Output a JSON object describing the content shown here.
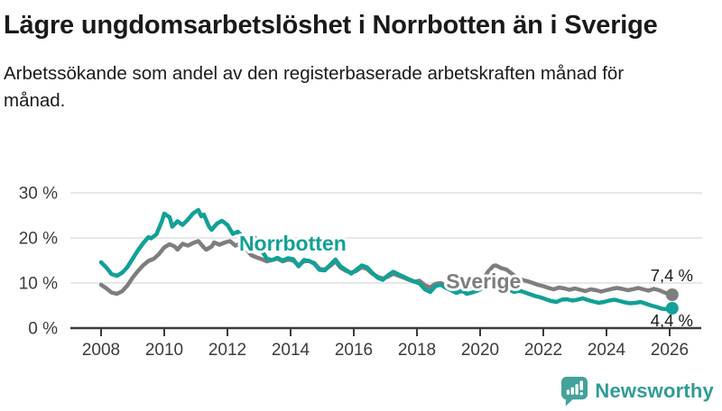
{
  "header": {
    "title": "Lägre ungdomsarbetslöshet i Norrbotten än i Sverige",
    "subtitle": "Arbetssökande som andel av den registerbaserade arbetskraften månad för månad."
  },
  "chart_data": {
    "type": "line",
    "title": "Lägre ungdomsarbetslöshet i Norrbotten än i Sverige",
    "xlabel": "",
    "ylabel": "Arbetssökande som andel av den registerbaserade arbetskraften, %",
    "x_unit": "year, monthly values",
    "xlim": [
      2007.0,
      2027.0
    ],
    "ylim": [
      0,
      32
    ],
    "grid": "horizontal",
    "legend_position": "inline-labels",
    "xticks": [
      2008,
      2010,
      2012,
      2014,
      2016,
      2018,
      2020,
      2022,
      2024,
      2026
    ],
    "yticks": [
      {
        "value": 0,
        "label": "0 %"
      },
      {
        "value": 10,
        "label": "10 %"
      },
      {
        "value": 20,
        "label": "20 %"
      },
      {
        "value": 30,
        "label": "30 %"
      }
    ],
    "series": [
      {
        "name": "Sverige",
        "color": "#7e7e7e",
        "label_pos": [
          2018.92,
          8.8
        ],
        "end_label": "7,4 %",
        "end_value": 7.4,
        "end_label_dy": -15,
        "points": [
          [
            2008.0,
            9.6
          ],
          [
            2008.17,
            8.8
          ],
          [
            2008.33,
            7.9
          ],
          [
            2008.5,
            7.6
          ],
          [
            2008.67,
            8.2
          ],
          [
            2008.83,
            9.4
          ],
          [
            2009.0,
            11.2
          ],
          [
            2009.17,
            12.7
          ],
          [
            2009.33,
            13.9
          ],
          [
            2009.5,
            14.9
          ],
          [
            2009.67,
            15.4
          ],
          [
            2009.83,
            16.4
          ],
          [
            2010.0,
            17.9
          ],
          [
            2010.17,
            18.6
          ],
          [
            2010.33,
            18.1
          ],
          [
            2010.42,
            17.4
          ],
          [
            2010.58,
            18.7
          ],
          [
            2010.75,
            18.3
          ],
          [
            2010.92,
            18.9
          ],
          [
            2011.08,
            19.3
          ],
          [
            2011.25,
            17.9
          ],
          [
            2011.33,
            17.4
          ],
          [
            2011.5,
            18.1
          ],
          [
            2011.58,
            19.0
          ],
          [
            2011.75,
            18.5
          ],
          [
            2011.92,
            19.0
          ],
          [
            2012.08,
            19.3
          ],
          [
            2012.25,
            18.3
          ],
          [
            2012.42,
            18.8
          ],
          [
            2012.58,
            17.7
          ],
          [
            2012.75,
            16.2
          ],
          [
            2012.92,
            15.7
          ],
          [
            2013.08,
            15.3
          ],
          [
            2013.25,
            14.8
          ],
          [
            2013.42,
            15.1
          ],
          [
            2013.58,
            15.4
          ],
          [
            2013.75,
            14.8
          ],
          [
            2013.92,
            15.2
          ],
          [
            2014.08,
            15.0
          ],
          [
            2014.25,
            13.9
          ],
          [
            2014.42,
            14.8
          ],
          [
            2014.58,
            14.9
          ],
          [
            2014.75,
            14.4
          ],
          [
            2014.92,
            13.1
          ],
          [
            2015.08,
            13.0
          ],
          [
            2015.25,
            13.8
          ],
          [
            2015.42,
            14.8
          ],
          [
            2015.58,
            13.4
          ],
          [
            2015.75,
            12.7
          ],
          [
            2015.92,
            12.3
          ],
          [
            2016.08,
            12.7
          ],
          [
            2016.25,
            13.5
          ],
          [
            2016.42,
            13.1
          ],
          [
            2016.58,
            12.1
          ],
          [
            2016.75,
            11.4
          ],
          [
            2016.92,
            11.0
          ],
          [
            2017.08,
            11.4
          ],
          [
            2017.25,
            12.1
          ],
          [
            2017.42,
            11.6
          ],
          [
            2017.58,
            11.2
          ],
          [
            2017.75,
            10.7
          ],
          [
            2017.92,
            10.3
          ],
          [
            2018.08,
            10.5
          ],
          [
            2018.25,
            9.5
          ],
          [
            2018.42,
            9.0
          ],
          [
            2018.58,
            9.8
          ],
          [
            2018.75,
            10.0
          ],
          [
            2018.92,
            9.4
          ],
          [
            2019.08,
            9.2
          ],
          [
            2019.25,
            9.6
          ],
          [
            2019.42,
            9.3
          ],
          [
            2019.58,
            9.0
          ],
          [
            2019.75,
            9.4
          ],
          [
            2019.92,
            9.9
          ],
          [
            2020.08,
            10.7
          ],
          [
            2020.25,
            12.5
          ],
          [
            2020.42,
            13.8
          ],
          [
            2020.5,
            13.9
          ],
          [
            2020.67,
            13.3
          ],
          [
            2020.83,
            13.0
          ],
          [
            2021.0,
            12.1
          ],
          [
            2021.17,
            11.2
          ],
          [
            2021.33,
            10.7
          ],
          [
            2021.5,
            10.4
          ],
          [
            2021.67,
            10.0
          ],
          [
            2021.83,
            9.6
          ],
          [
            2022.0,
            9.3
          ],
          [
            2022.17,
            8.9
          ],
          [
            2022.33,
            8.6
          ],
          [
            2022.5,
            9.0
          ],
          [
            2022.67,
            8.8
          ],
          [
            2022.83,
            8.5
          ],
          [
            2023.0,
            8.8
          ],
          [
            2023.17,
            8.5
          ],
          [
            2023.33,
            8.2
          ],
          [
            2023.5,
            8.6
          ],
          [
            2023.67,
            8.4
          ],
          [
            2023.83,
            8.1
          ],
          [
            2024.0,
            8.4
          ],
          [
            2024.17,
            8.7
          ],
          [
            2024.33,
            8.9
          ],
          [
            2024.5,
            8.7
          ],
          [
            2024.67,
            8.4
          ],
          [
            2024.83,
            8.6
          ],
          [
            2025.0,
            8.9
          ],
          [
            2025.17,
            8.6
          ],
          [
            2025.33,
            8.3
          ],
          [
            2025.5,
            8.7
          ],
          [
            2025.67,
            8.4
          ],
          [
            2025.83,
            7.9
          ],
          [
            2026.08,
            7.4
          ]
        ]
      },
      {
        "name": "Norrbotten",
        "color": "#12a097",
        "label_pos": [
          2012.37,
          17.2
        ],
        "end_label": "4,4 %",
        "end_value": 4.4,
        "end_label_dy": 20,
        "points": [
          [
            2008.0,
            14.6
          ],
          [
            2008.17,
            13.4
          ],
          [
            2008.33,
            12.0
          ],
          [
            2008.5,
            11.6
          ],
          [
            2008.67,
            12.3
          ],
          [
            2008.83,
            13.5
          ],
          [
            2009.0,
            15.4
          ],
          [
            2009.17,
            17.3
          ],
          [
            2009.33,
            18.8
          ],
          [
            2009.5,
            20.2
          ],
          [
            2009.58,
            19.9
          ],
          [
            2009.75,
            20.8
          ],
          [
            2009.92,
            23.6
          ],
          [
            2010.0,
            25.4
          ],
          [
            2010.17,
            24.6
          ],
          [
            2010.25,
            22.5
          ],
          [
            2010.42,
            23.7
          ],
          [
            2010.58,
            22.9
          ],
          [
            2010.75,
            24.1
          ],
          [
            2010.92,
            25.5
          ],
          [
            2011.08,
            26.2
          ],
          [
            2011.17,
            24.8
          ],
          [
            2011.25,
            25.2
          ],
          [
            2011.42,
            22.5
          ],
          [
            2011.5,
            21.8
          ],
          [
            2011.67,
            23.2
          ],
          [
            2011.83,
            23.8
          ],
          [
            2012.0,
            22.9
          ],
          [
            2012.17,
            20.9
          ],
          [
            2012.33,
            21.4
          ],
          [
            2012.5,
            20.1
          ],
          [
            2012.67,
            19.3
          ],
          [
            2012.83,
            20.3
          ],
          [
            2012.92,
            19.7
          ],
          [
            2013.08,
            17.2
          ],
          [
            2013.25,
            15.4
          ],
          [
            2013.42,
            15.1
          ],
          [
            2013.58,
            15.6
          ],
          [
            2013.75,
            15.0
          ],
          [
            2013.92,
            15.5
          ],
          [
            2014.08,
            15.3
          ],
          [
            2014.25,
            13.7
          ],
          [
            2014.42,
            15.1
          ],
          [
            2014.58,
            14.9
          ],
          [
            2014.75,
            14.3
          ],
          [
            2014.92,
            12.9
          ],
          [
            2015.08,
            12.8
          ],
          [
            2015.25,
            14.0
          ],
          [
            2015.42,
            15.2
          ],
          [
            2015.58,
            13.7
          ],
          [
            2015.75,
            12.9
          ],
          [
            2015.92,
            12.1
          ],
          [
            2016.08,
            12.9
          ],
          [
            2016.25,
            13.9
          ],
          [
            2016.42,
            13.5
          ],
          [
            2016.58,
            12.3
          ],
          [
            2016.75,
            11.2
          ],
          [
            2016.92,
            10.7
          ],
          [
            2017.08,
            11.7
          ],
          [
            2017.25,
            12.5
          ],
          [
            2017.42,
            11.9
          ],
          [
            2017.58,
            11.4
          ],
          [
            2017.75,
            10.8
          ],
          [
            2017.92,
            10.3
          ],
          [
            2018.08,
            9.9
          ],
          [
            2018.25,
            8.6
          ],
          [
            2018.42,
            8.0
          ],
          [
            2018.58,
            9.3
          ],
          [
            2018.75,
            9.6
          ],
          [
            2018.92,
            8.9
          ],
          [
            2019.08,
            8.4
          ],
          [
            2019.25,
            7.8
          ],
          [
            2019.42,
            8.3
          ],
          [
            2019.58,
            7.6
          ],
          [
            2019.75,
            7.9
          ],
          [
            2019.92,
            8.3
          ],
          [
            2020.08,
            8.9
          ],
          [
            2020.25,
            9.7
          ],
          [
            2020.42,
            10.4
          ],
          [
            2020.58,
            10.0
          ],
          [
            2020.75,
            9.2
          ],
          [
            2020.92,
            8.5
          ],
          [
            2021.08,
            8.0
          ],
          [
            2021.25,
            8.3
          ],
          [
            2021.42,
            7.9
          ],
          [
            2021.58,
            7.5
          ],
          [
            2021.75,
            7.1
          ],
          [
            2021.92,
            6.8
          ],
          [
            2022.08,
            6.4
          ],
          [
            2022.25,
            6.0
          ],
          [
            2022.42,
            5.8
          ],
          [
            2022.58,
            6.3
          ],
          [
            2022.75,
            6.4
          ],
          [
            2022.92,
            6.1
          ],
          [
            2023.08,
            6.3
          ],
          [
            2023.25,
            6.6
          ],
          [
            2023.42,
            6.2
          ],
          [
            2023.58,
            5.9
          ],
          [
            2023.75,
            5.6
          ],
          [
            2023.92,
            5.8
          ],
          [
            2024.08,
            6.1
          ],
          [
            2024.25,
            6.3
          ],
          [
            2024.42,
            6.0
          ],
          [
            2024.58,
            5.7
          ],
          [
            2024.75,
            5.5
          ],
          [
            2024.92,
            5.6
          ],
          [
            2025.08,
            5.8
          ],
          [
            2025.25,
            5.4
          ],
          [
            2025.42,
            5.0
          ],
          [
            2025.58,
            4.7
          ],
          [
            2025.75,
            4.3
          ],
          [
            2025.92,
            4.2
          ],
          [
            2026.08,
            4.4
          ]
        ]
      }
    ],
    "colors": {
      "norrbotten": "#12a097",
      "sverige": "#7e7e7e",
      "grid": "#e1e1e1",
      "axis": "#3c3c3c",
      "text": "#1a1a1a"
    }
  },
  "footer": {
    "brand": "Newsworthy",
    "brand_color": "#2f9c94"
  }
}
